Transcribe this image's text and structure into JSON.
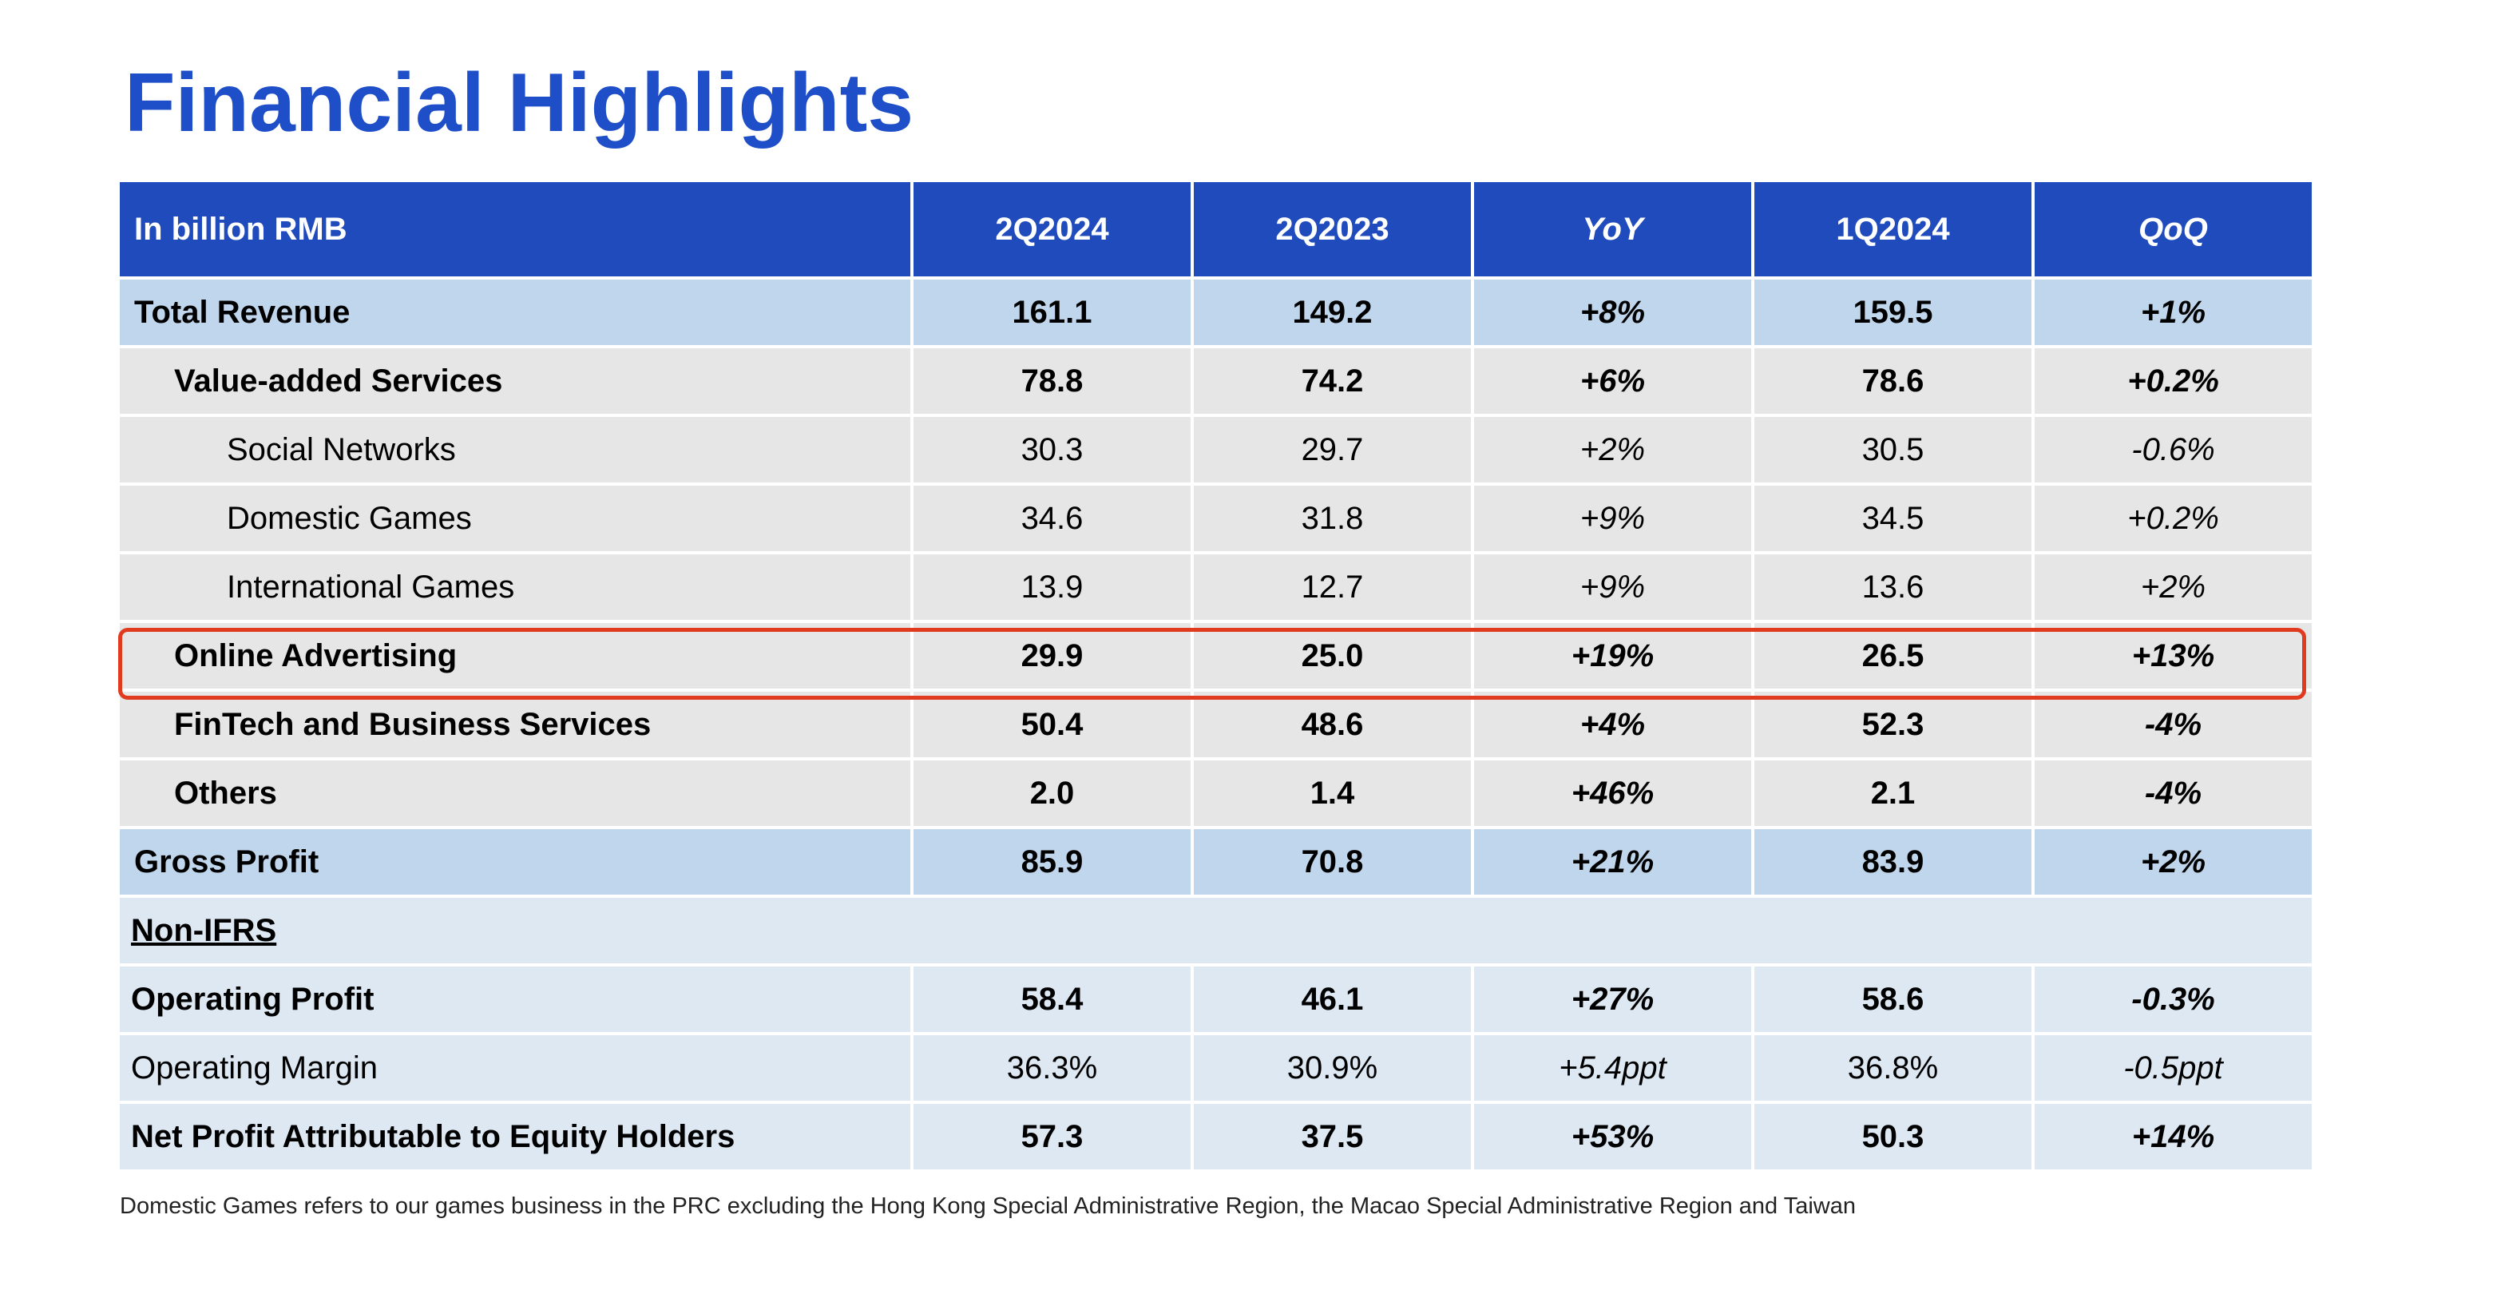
{
  "title": "Financial Highlights",
  "table": {
    "header": [
      "In billion RMB",
      "2Q2024",
      "2Q2023",
      "YoY",
      "1Q2024",
      "QoQ"
    ],
    "rows": [
      {
        "label": "Total Revenue",
        "values": [
          "161.1",
          "149.2",
          "+8%",
          "159.5",
          "+1%"
        ]
      },
      {
        "label": "Value-added Services",
        "values": [
          "78.8",
          "74.2",
          "+6%",
          "78.6",
          "+0.2%"
        ]
      },
      {
        "label": "Social Networks",
        "values": [
          "30.3",
          "29.7",
          "+2%",
          "30.5",
          "-0.6%"
        ]
      },
      {
        "label": "Domestic Games",
        "values": [
          "34.6",
          "31.8",
          "+9%",
          "34.5",
          "+0.2%"
        ]
      },
      {
        "label": "International Games",
        "values": [
          "13.9",
          "12.7",
          "+9%",
          "13.6",
          "+2%"
        ]
      },
      {
        "label": "Online Advertising",
        "values": [
          "29.9",
          "25.0",
          "+19%",
          "26.5",
          "+13%"
        ]
      },
      {
        "label": "FinTech and Business Services",
        "values": [
          "50.4",
          "48.6",
          "+4%",
          "52.3",
          "-4%"
        ]
      },
      {
        "label": "Others",
        "values": [
          "2.0",
          "1.4",
          "+46%",
          "2.1",
          "-4%"
        ]
      },
      {
        "label": "Gross Profit",
        "values": [
          "85.9",
          "70.8",
          "+21%",
          "83.9",
          "+2%"
        ]
      },
      {
        "label": "Non-IFRS",
        "values": []
      },
      {
        "label": "Operating Profit",
        "values": [
          "58.4",
          "46.1",
          "+27%",
          "58.6",
          "-0.3%"
        ]
      },
      {
        "label": "Operating Margin",
        "values": [
          "36.3%",
          "30.9%",
          "+5.4ppt",
          "36.8%",
          "-0.5ppt"
        ]
      },
      {
        "label": "Net Profit Attributable to Equity Holders",
        "values": [
          "57.3",
          "37.5",
          "+53%",
          "50.3",
          "+14%"
        ]
      }
    ]
  },
  "footnote": "Domestic Games refers to our games business in the PRC excluding the Hong Kong Special Administrative Region, the Macao Special Administrative Region and Taiwan",
  "colors": {
    "title": "#1f4fc8",
    "header_bg": "#1f4bbd",
    "total_row_bg": "#c0d6ec",
    "segment_row_bg": "#e6e6e6",
    "non_ifrs_row_bg": "#dde8f3",
    "highlight_box": "#e03a1f"
  }
}
